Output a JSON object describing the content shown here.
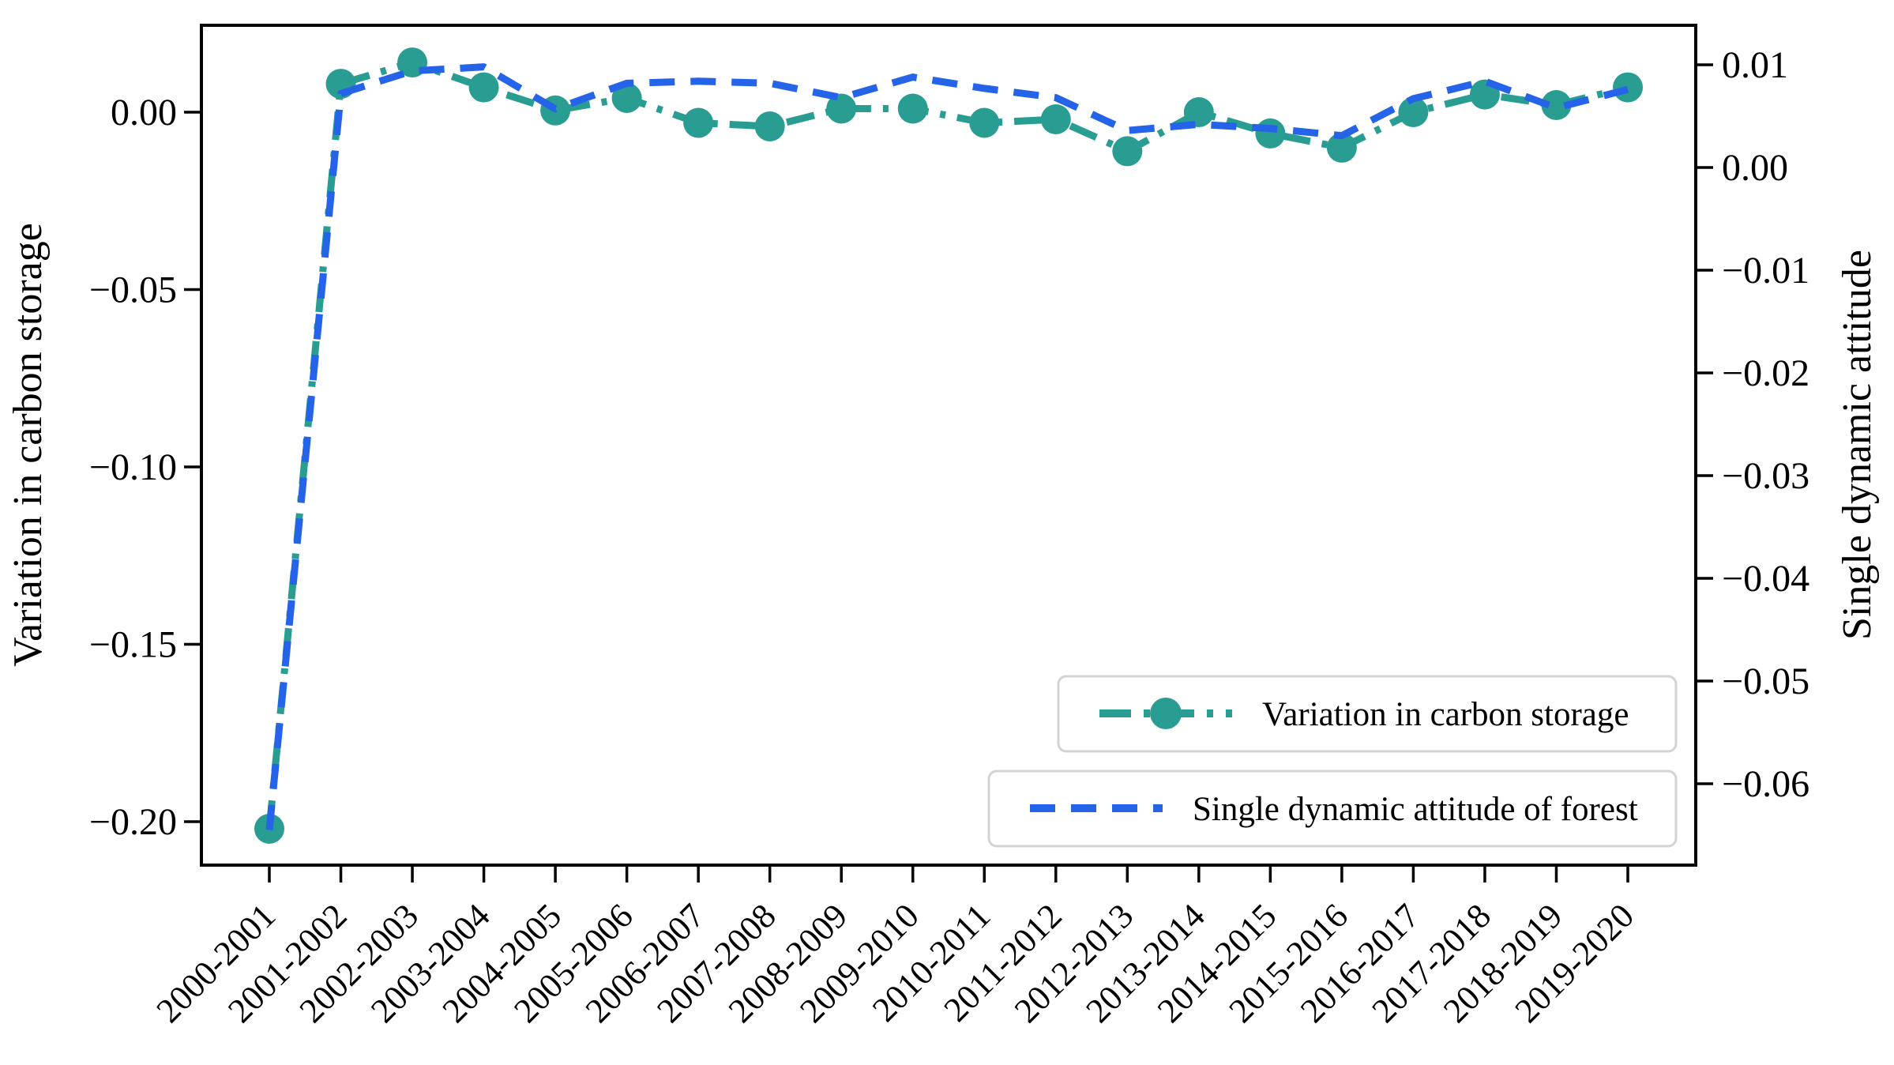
{
  "figure": {
    "left_axis": {
      "label": "Variation in carbon storage",
      "ticks": [
        {
          "value": 0.0,
          "label": "0.00"
        },
        {
          "value": -0.05,
          "label": "−0.05"
        },
        {
          "value": -0.1,
          "label": "−0.10"
        },
        {
          "value": -0.15,
          "label": "−0.15"
        },
        {
          "value": -0.2,
          "label": "−0.20"
        }
      ]
    },
    "right_axis": {
      "label": "Single dynamic attitude",
      "ticks": [
        {
          "value": 0.01,
          "label": "0.01"
        },
        {
          "value": 0.0,
          "label": "0.00"
        },
        {
          "value": -0.01,
          "label": "−0.01"
        },
        {
          "value": -0.02,
          "label": "−0.02"
        },
        {
          "value": -0.03,
          "label": "−0.03"
        },
        {
          "value": -0.04,
          "label": "−0.04"
        },
        {
          "value": -0.05,
          "label": "−0.05"
        },
        {
          "value": -0.06,
          "label": "−0.06"
        }
      ]
    },
    "legend": [
      {
        "label": "Variation in carbon storage",
        "series": "carbon",
        "color": "#2a9d93",
        "style": "dashdot-marker"
      },
      {
        "label": "Single dynamic attitude of forest",
        "series": "attitude",
        "color": "#2563e8",
        "style": "dashed"
      }
    ]
  },
  "chart_data": {
    "type": "line",
    "categories": [
      "2000-2001",
      "2001-2002",
      "2002-2003",
      "2003-2004",
      "2004-2005",
      "2005-2006",
      "2006-2007",
      "2007-2008",
      "2008-2009",
      "2009-2010",
      "2010-2011",
      "2011-2012",
      "2012-2013",
      "2013-2014",
      "2014-2015",
      "2015-2016",
      "2016-2017",
      "2017-2018",
      "2018-2019",
      "2019-2020"
    ],
    "series": [
      {
        "name": "Variation in carbon storage",
        "axis": "left",
        "color": "#2a9d93",
        "style": "dashdot-marker",
        "values": [
          -0.202,
          0.008,
          0.014,
          0.007,
          0.0005,
          0.004,
          -0.003,
          -0.004,
          0.001,
          0.001,
          -0.003,
          -0.002,
          -0.011,
          0.0,
          -0.006,
          -0.01,
          0.0,
          0.005,
          0.002,
          0.007
        ]
      },
      {
        "name": "Single dynamic attitude of forest",
        "axis": "right",
        "color": "#2563e8",
        "style": "dashed",
        "values": [
          -0.0645,
          0.0072,
          0.0094,
          0.0098,
          0.0057,
          0.0082,
          0.0084,
          0.0082,
          0.0068,
          0.0088,
          0.0077,
          0.0068,
          0.0036,
          0.0042,
          0.0038,
          0.0031,
          0.0067,
          0.0084,
          0.0058,
          0.0076
        ]
      }
    ],
    "left_ylabel": "Variation in carbon storage",
    "right_ylabel": "Single dynamic attitude",
    "left_ylim": [
      -0.21225,
      0.0245
    ],
    "right_ylim": [
      -0.067923,
      0.013846
    ],
    "grid": false,
    "legend_position": "lower right, two stacked framed boxes",
    "x_tick_rotation": 45
  }
}
